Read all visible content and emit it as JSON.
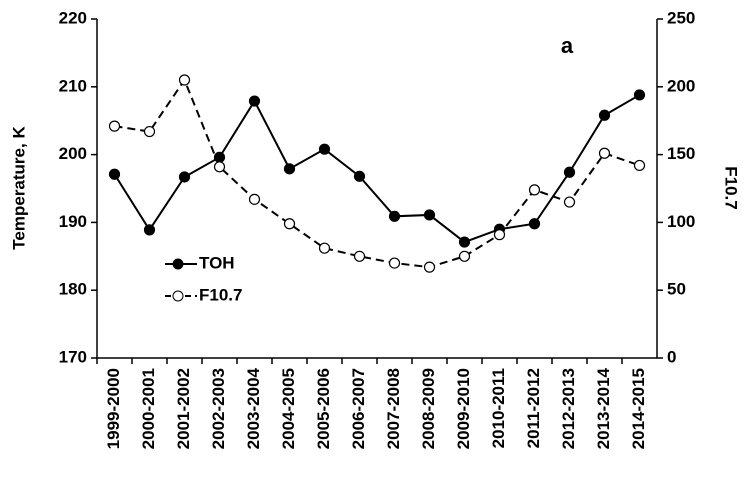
{
  "chart_data": {
    "type": "line",
    "annotation": "a",
    "y_label": "Temperature, K",
    "y2_label": "F10.7",
    "categories": [
      "1999-2000",
      "2000-2001",
      "2001-2002",
      "2002-2003",
      "2003-2004",
      "2004-2005",
      "2005-2006",
      "2006-2007",
      "2007-2008",
      "2008-2009",
      "2009-2010",
      "2010-2011",
      "2011-2012",
      "2012-2013",
      "2013-2014",
      "2014-2015"
    ],
    "series": [
      {
        "name": "TOH",
        "color": "#000000",
        "line_style": "solid",
        "marker": "filled",
        "values": [
          197.1,
          188.9,
          196.7,
          199.6,
          207.9,
          197.9,
          200.8,
          196.8,
          190.9,
          191.1,
          187.1,
          189.0,
          189.8,
          197.4,
          205.8,
          208.8
        ]
      },
      {
        "name": "F10.7",
        "color": "#000000",
        "line_style": "dashed",
        "marker": "open",
        "axis": "y2",
        "values": [
          171,
          167,
          205,
          141,
          117,
          99,
          81,
          75,
          70,
          67,
          75,
          91,
          124,
          115,
          151,
          142
        ]
      }
    ],
    "ylim": [
      170,
      220
    ],
    "yticks": [
      170,
      180,
      190,
      200,
      210,
      220
    ],
    "y2lim": [
      0,
      250
    ],
    "y2ticks": [
      0,
      50,
      100,
      150,
      200,
      250
    ],
    "legend": "left"
  }
}
